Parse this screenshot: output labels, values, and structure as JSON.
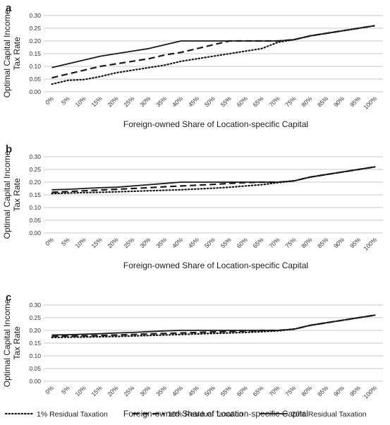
{
  "chart_data": [
    {
      "type": "line",
      "panel_label": "a",
      "xlabel": "Foreign-owned Share of Location-specific Capital",
      "ylabel": "Optimal Capital Income Tax Rate",
      "categories": [
        "0%",
        "5%",
        "10%",
        "15%",
        "20%",
        "25%",
        "30%",
        "35%",
        "40%",
        "45%",
        "50%",
        "55%",
        "60%",
        "65%",
        "70%",
        "75%",
        "80%",
        "85%",
        "90%",
        "95%",
        "100%"
      ],
      "y_ticks": [
        "0.00",
        "0.05",
        "0.10",
        "0.15",
        "0.20",
        "0.25",
        "0.30"
      ],
      "ylim": [
        0,
        0.3
      ],
      "grid": true,
      "series": [
        {
          "name": "1% Residual Taxation",
          "style": "dotted",
          "values": [
            0.03,
            0.045,
            0.048,
            0.06,
            0.075,
            0.085,
            0.095,
            0.105,
            0.12,
            0.13,
            0.14,
            0.15,
            0.16,
            0.17,
            0.195,
            0.205,
            0.22,
            0.23,
            0.24,
            0.25,
            0.26
          ]
        },
        {
          "name": "10% Residual Taxation",
          "style": "dashed",
          "values": [
            0.055,
            0.07,
            0.085,
            0.1,
            0.11,
            0.12,
            0.13,
            0.145,
            0.155,
            0.17,
            0.185,
            0.2,
            0.2,
            0.2,
            0.2,
            0.205,
            0.22,
            0.23,
            0.24,
            0.25,
            0.26
          ]
        },
        {
          "name": "20% Residual Taxation",
          "style": "solid",
          "values": [
            0.095,
            0.11,
            0.125,
            0.14,
            0.15,
            0.16,
            0.17,
            0.185,
            0.2,
            0.2,
            0.2,
            0.2,
            0.2,
            0.2,
            0.2,
            0.205,
            0.22,
            0.23,
            0.24,
            0.25,
            0.26
          ]
        }
      ]
    },
    {
      "type": "line",
      "panel_label": "b",
      "xlabel": "Foreign-owned Share of Location-specific Capital",
      "ylabel": "Optimal Capital Income Tax Rate",
      "categories": [
        "0%",
        "5%",
        "10%",
        "15%",
        "20%",
        "25%",
        "30%",
        "35%",
        "40%",
        "45%",
        "50%",
        "55%",
        "60%",
        "65%",
        "70%",
        "75%",
        "80%",
        "85%",
        "90%",
        "95%",
        "100%"
      ],
      "y_ticks": [
        "0.00",
        "0.05",
        "0.10",
        "0.15",
        "0.20",
        "0.25",
        "0.30"
      ],
      "ylim": [
        0,
        0.3
      ],
      "grid": true,
      "series": [
        {
          "name": "1% Residual Taxation",
          "style": "dotted",
          "values": [
            0.155,
            0.157,
            0.159,
            0.16,
            0.162,
            0.164,
            0.166,
            0.168,
            0.17,
            0.173,
            0.176,
            0.18,
            0.185,
            0.19,
            0.198,
            0.205,
            0.22,
            0.23,
            0.24,
            0.25,
            0.26
          ]
        },
        {
          "name": "10% Residual Taxation",
          "style": "dashed",
          "values": [
            0.16,
            0.163,
            0.166,
            0.169,
            0.172,
            0.175,
            0.178,
            0.182,
            0.185,
            0.188,
            0.191,
            0.195,
            0.198,
            0.2,
            0.2,
            0.205,
            0.22,
            0.23,
            0.24,
            0.25,
            0.26
          ]
        },
        {
          "name": "20% Residual Taxation",
          "style": "solid",
          "values": [
            0.17,
            0.172,
            0.175,
            0.178,
            0.18,
            0.185,
            0.19,
            0.195,
            0.2,
            0.2,
            0.2,
            0.2,
            0.2,
            0.2,
            0.2,
            0.205,
            0.22,
            0.23,
            0.24,
            0.25,
            0.26
          ]
        }
      ]
    },
    {
      "type": "line",
      "panel_label": "c",
      "xlabel": "Foreign-owned Share of Location-specific Capital",
      "ylabel": "Optimal Capital Income Tax Rate",
      "categories": [
        "0%",
        "5%",
        "10%",
        "15%",
        "20%",
        "25%",
        "30%",
        "35%",
        "40%",
        "45%",
        "50%",
        "55%",
        "60%",
        "65%",
        "70%",
        "75%",
        "80%",
        "85%",
        "90%",
        "95%",
        "100%"
      ],
      "y_ticks": [
        "0.00",
        "0.05",
        "0.10",
        "0.15",
        "0.20",
        "0.25",
        "0.30"
      ],
      "ylim": [
        0,
        0.3
      ],
      "grid": true,
      "series": [
        {
          "name": "1% Residual Taxation",
          "style": "dotted",
          "values": [
            0.172,
            0.173,
            0.174,
            0.175,
            0.176,
            0.178,
            0.18,
            0.182,
            0.184,
            0.186,
            0.188,
            0.19,
            0.192,
            0.195,
            0.198,
            0.205,
            0.22,
            0.23,
            0.24,
            0.25,
            0.26
          ]
        },
        {
          "name": "10% Residual Taxation",
          "style": "dashed",
          "values": [
            0.177,
            0.178,
            0.179,
            0.18,
            0.182,
            0.184,
            0.186,
            0.188,
            0.19,
            0.192,
            0.194,
            0.196,
            0.198,
            0.2,
            0.2,
            0.205,
            0.22,
            0.23,
            0.24,
            0.25,
            0.26
          ]
        },
        {
          "name": "20% Residual Taxation",
          "style": "solid",
          "values": [
            0.182,
            0.183,
            0.185,
            0.187,
            0.19,
            0.192,
            0.195,
            0.198,
            0.2,
            0.2,
            0.2,
            0.2,
            0.2,
            0.2,
            0.2,
            0.205,
            0.22,
            0.23,
            0.24,
            0.25,
            0.26
          ]
        }
      ]
    }
  ],
  "legend": {
    "placement": "bottom",
    "items": [
      {
        "label": "1% Residual Taxation",
        "style": "dotted"
      },
      {
        "label": "10% Residual Taxation",
        "style": "dashed"
      },
      {
        "label": "20% Residual Taxation",
        "style": "solid"
      }
    ]
  },
  "colors": {
    "lines": "#1a1a1a",
    "grid": "#c8c8c8",
    "text": "#222222"
  }
}
